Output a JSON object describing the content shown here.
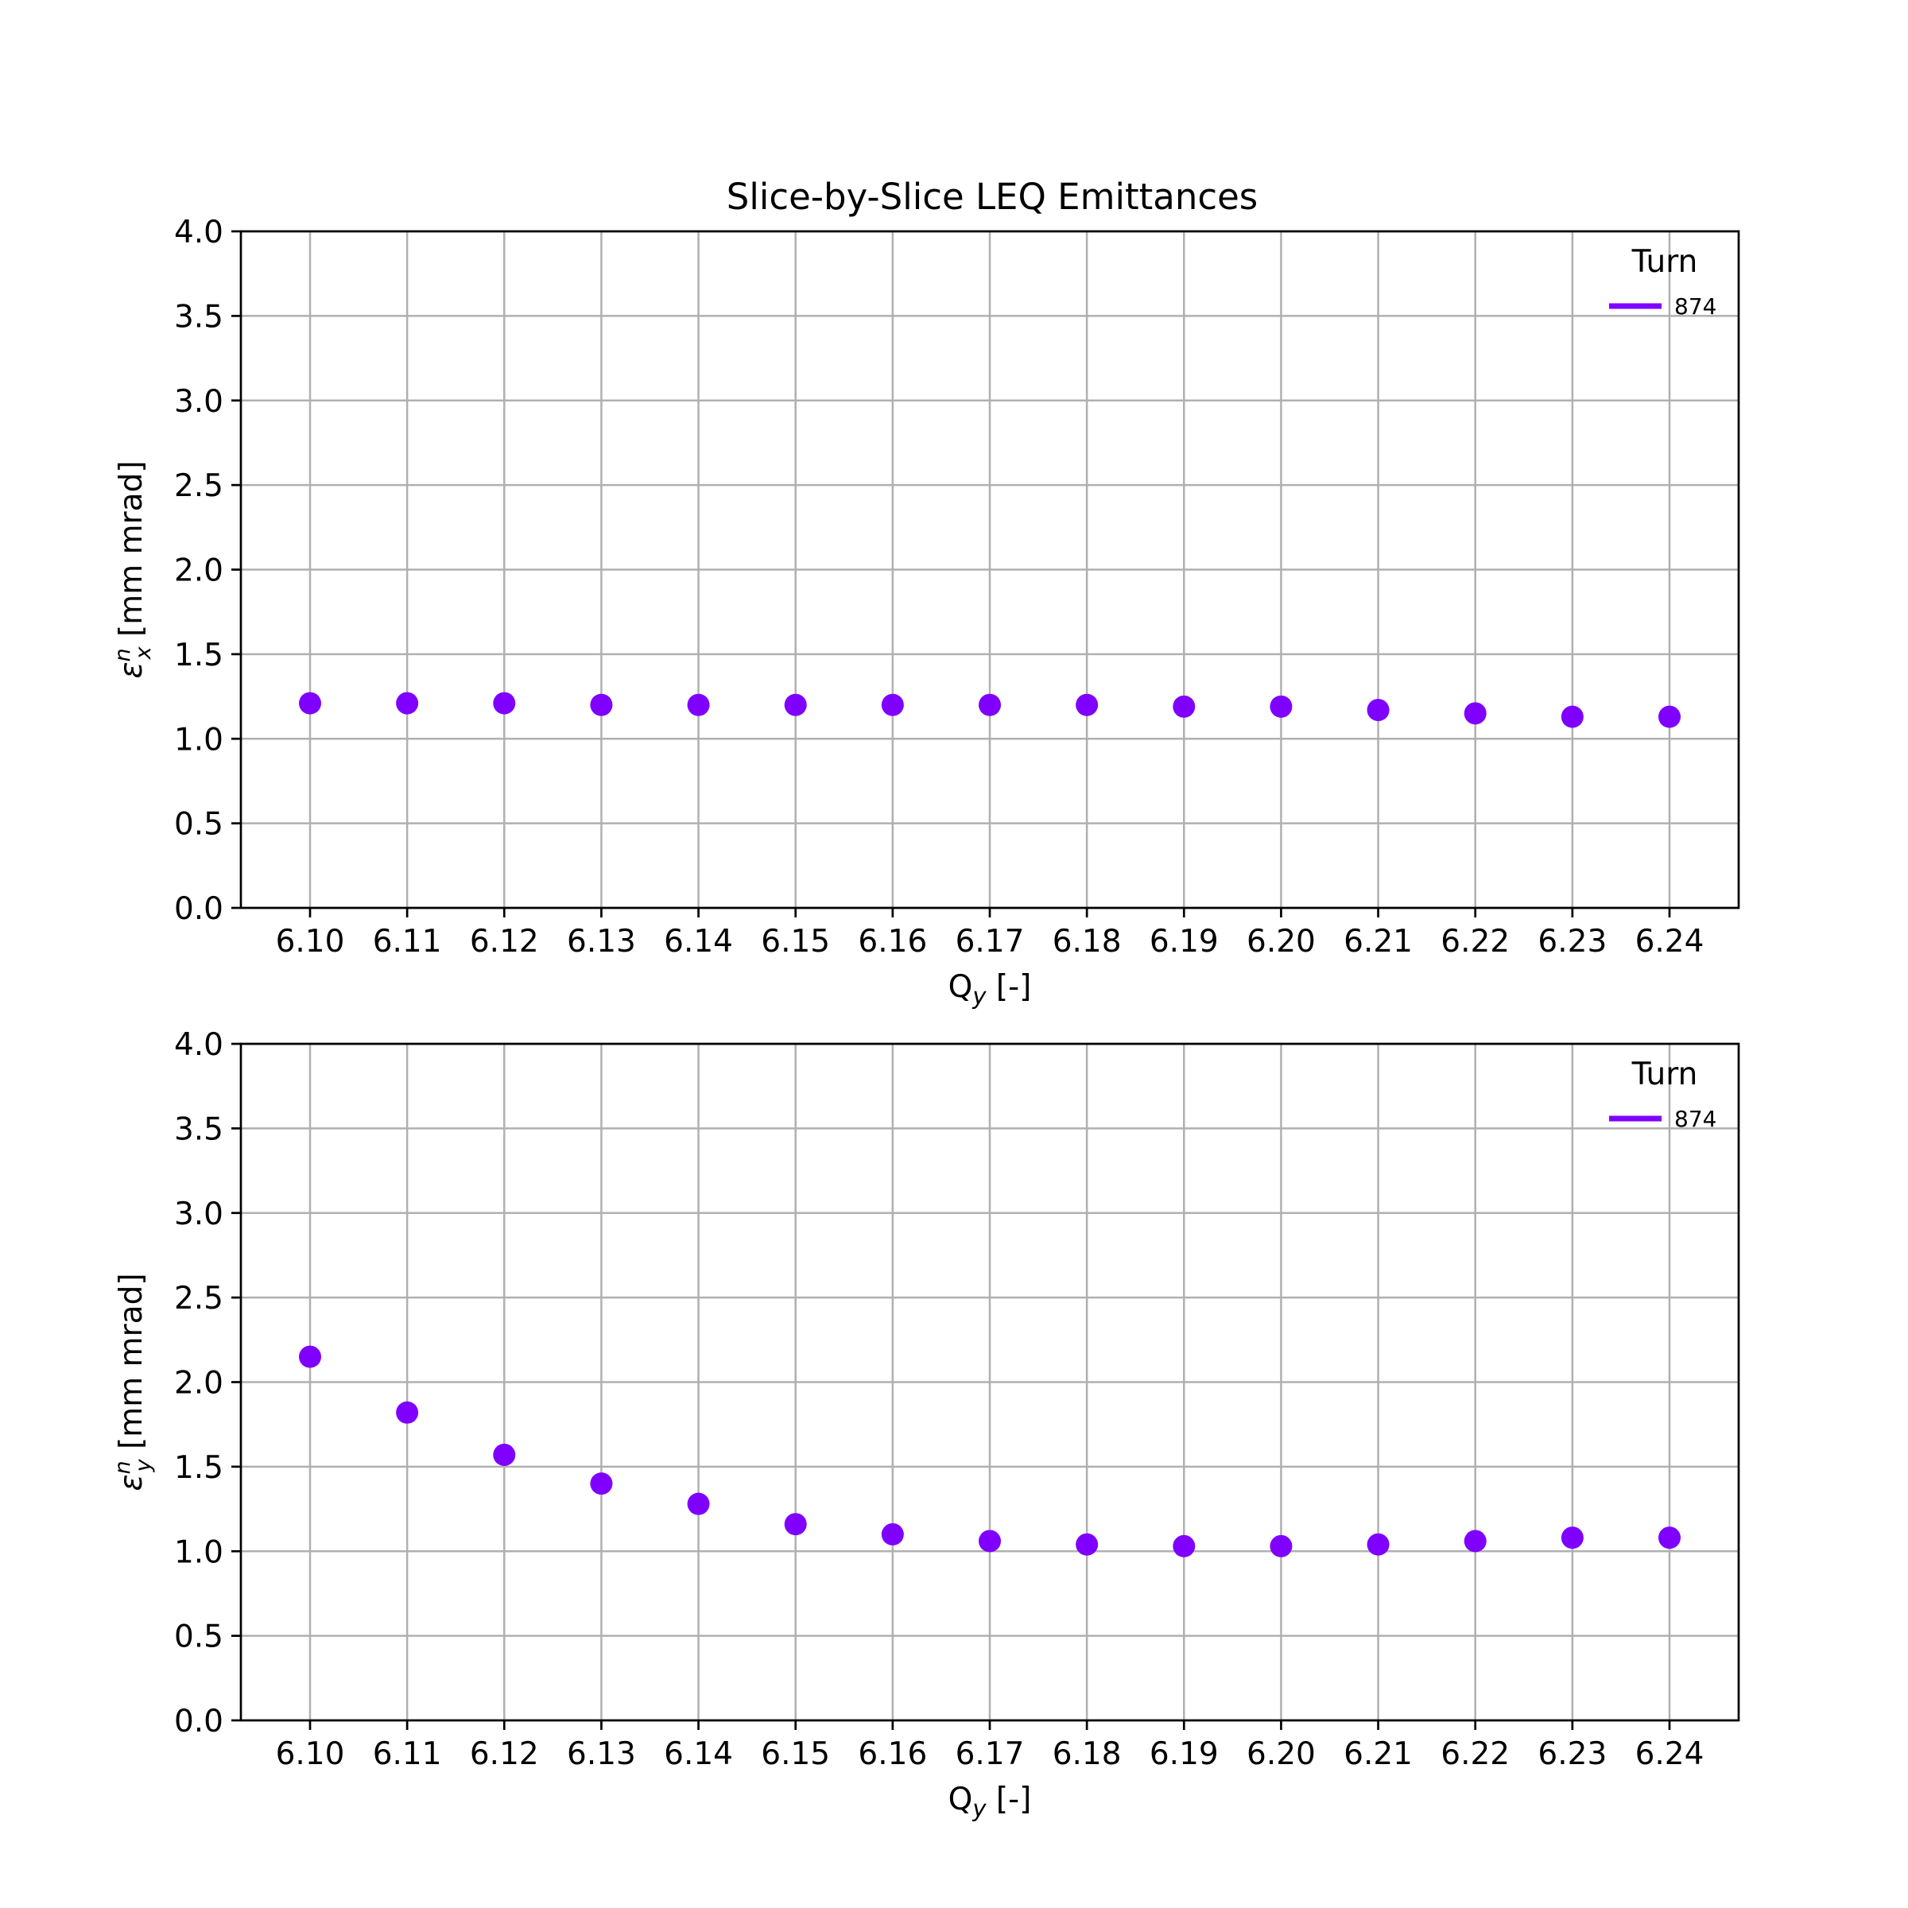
{
  "chart_data": [
    {
      "type": "scatter",
      "title": "Slice-by-Slice LEQ Emittances",
      "xlabel": "Q",
      "xlabel_sub": "y",
      "xlabel_suffix": " [-]",
      "ylabel": "ε",
      "ylabel_sup": "n",
      "ylabel_sub": "x",
      "ylabel_suffix": " [mm mrad]",
      "categories": [
        "6.10",
        "6.11",
        "6.12",
        "6.13",
        "6.14",
        "6.15",
        "6.16",
        "6.17",
        "6.18",
        "6.19",
        "6.20",
        "6.21",
        "6.22",
        "6.23",
        "6.24"
      ],
      "ylim": [
        0,
        4
      ],
      "yticks": [
        "0.0",
        "0.5",
        "1.0",
        "1.5",
        "2.0",
        "2.5",
        "3.0",
        "3.5",
        "4.0"
      ],
      "grid": true,
      "legend": {
        "title": "Turn",
        "placement": "top-right"
      },
      "series": [
        {
          "name": "874",
          "color": "#7f00ff",
          "values": [
            1.21,
            1.21,
            1.21,
            1.2,
            1.2,
            1.2,
            1.2,
            1.2,
            1.2,
            1.19,
            1.19,
            1.17,
            1.15,
            1.13,
            1.13
          ]
        }
      ]
    },
    {
      "type": "scatter",
      "title": "",
      "xlabel": "Q",
      "xlabel_sub": "y",
      "xlabel_suffix": " [-]",
      "ylabel": "ε",
      "ylabel_sup": "n",
      "ylabel_sub": "y",
      "ylabel_suffix": " [mm mrad]",
      "categories": [
        "6.10",
        "6.11",
        "6.12",
        "6.13",
        "6.14",
        "6.15",
        "6.16",
        "6.17",
        "6.18",
        "6.19",
        "6.20",
        "6.21",
        "6.22",
        "6.23",
        "6.24"
      ],
      "ylim": [
        0,
        4
      ],
      "yticks": [
        "0.0",
        "0.5",
        "1.0",
        "1.5",
        "2.0",
        "2.5",
        "3.0",
        "3.5",
        "4.0"
      ],
      "grid": true,
      "legend": {
        "title": "Turn",
        "placement": "top-right"
      },
      "series": [
        {
          "name": "874",
          "color": "#7f00ff",
          "values": [
            2.15,
            1.82,
            1.57,
            1.4,
            1.28,
            1.16,
            1.1,
            1.06,
            1.04,
            1.03,
            1.03,
            1.04,
            1.06,
            1.08,
            1.08
          ]
        }
      ]
    }
  ]
}
